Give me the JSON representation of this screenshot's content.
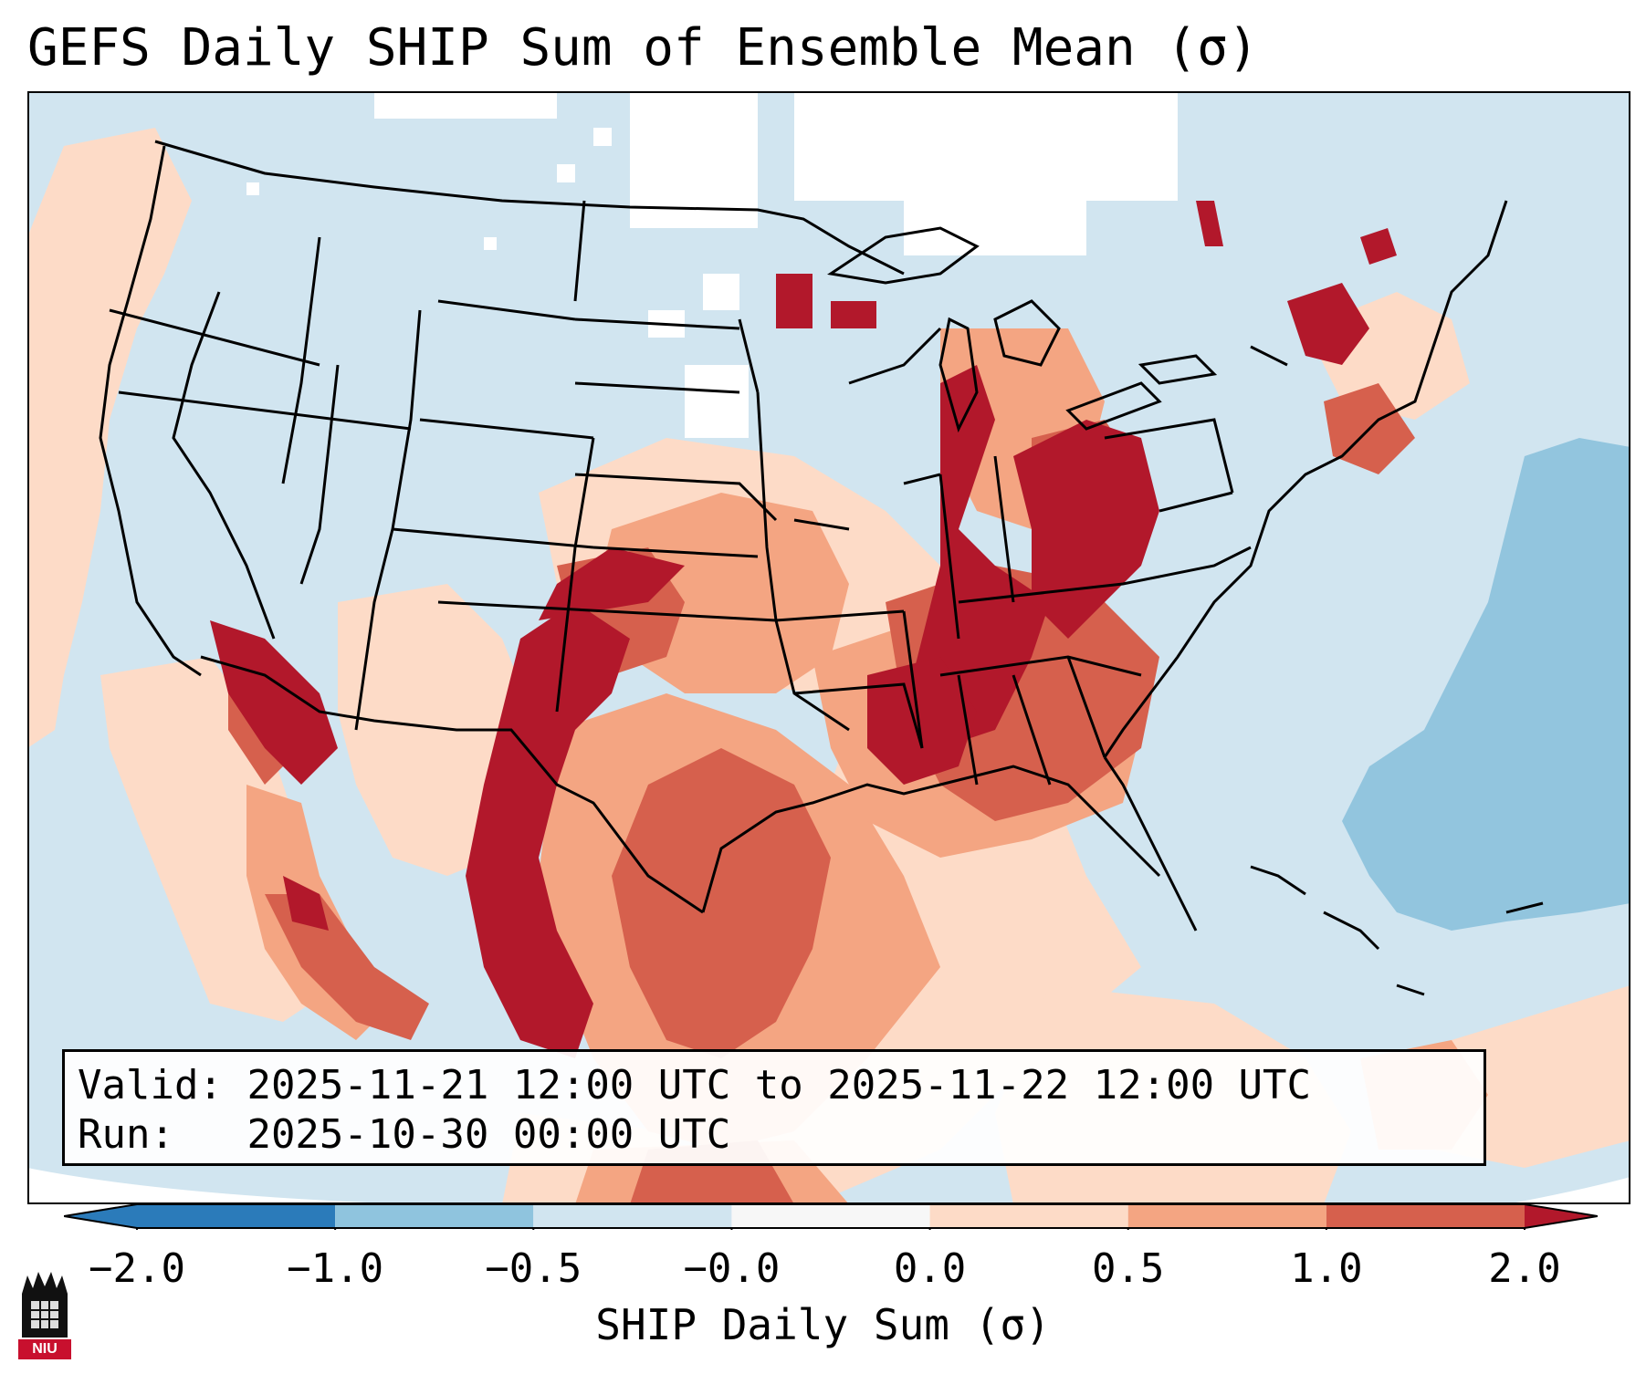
{
  "title": "GEFS Daily SHIP Sum of Ensemble Mean (σ)",
  "info": {
    "valid_label": "Valid:",
    "valid_value": "2025-11-21 12:00 UTC to 2025-11-22 12:00 UTC",
    "run_label": "Run:",
    "run_value": "2025-10-30 00:00 UTC"
  },
  "colorbar": {
    "label": "SHIP Daily Sum (σ)",
    "ticks": [
      "−2.0",
      "−1.0",
      "−0.5",
      "−0.0",
      "0.0",
      "0.5",
      "1.0",
      "2.0"
    ],
    "colors": [
      "#2b7bba",
      "#8fc4de",
      "#d1e5f0",
      "#f7f7f7",
      "#fddbc7",
      "#f4a582",
      "#d6604d",
      "#b2182b"
    ]
  },
  "logo": {
    "text": "NIU"
  },
  "legend_colors": {
    "ocean_neutral": "#d1e5f0",
    "land_neutral": "#d1e5f0",
    "white_zero": "#ffffff",
    "light_red": "#fddbc7",
    "mid_red": "#f4a582",
    "red": "#d6604d",
    "dark_red": "#b2182b",
    "blue": "#92c5de"
  }
}
